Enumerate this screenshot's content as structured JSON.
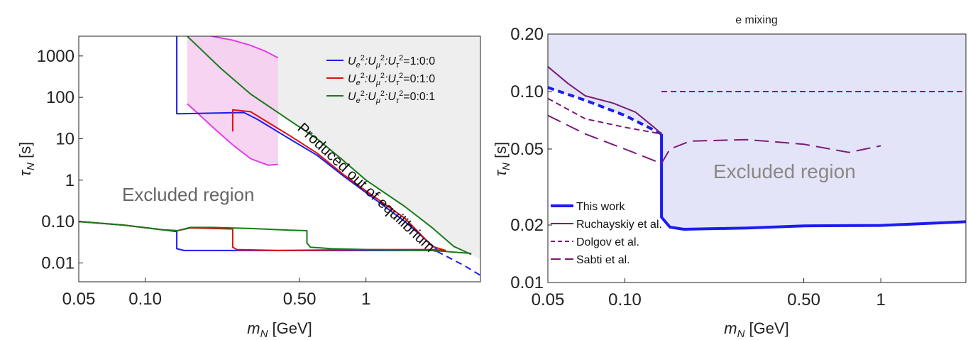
{
  "chart_data": [
    {
      "type": "line",
      "title": "",
      "xlabel": "m",
      "xlabel_sub": "N",
      "xlabel_unit": " [GeV]",
      "ylabel": "τ",
      "ylabel_sub": "N",
      "ylabel_unit": " [s]",
      "x_scale": "log",
      "y_scale": "log",
      "xlim": [
        0.05,
        3.3
      ],
      "ylim": [
        0.0035,
        3000
      ],
      "x_ticks": [
        {
          "v": 0.05,
          "label": "0.05"
        },
        {
          "v": 0.1,
          "label": "0.10"
        },
        {
          "v": 0.5,
          "label": "0.50"
        },
        {
          "v": 1,
          "label": "1"
        }
      ],
      "y_ticks": [
        {
          "v": 0.01,
          "label": "0.01"
        },
        {
          "v": 0.1,
          "label": "0.10"
        },
        {
          "v": 1,
          "label": "1"
        },
        {
          "v": 10,
          "label": "10"
        },
        {
          "v": 100,
          "label": "100"
        },
        {
          "v": 1000,
          "label": "1000"
        }
      ],
      "grid": false,
      "legend_position": "top-right",
      "annotations": {
        "excluded": "Excluded region",
        "out_of_eq": "Produced out of equilibrium"
      },
      "legend": [
        {
          "series": "Ue",
          "color": "#1c1cf0",
          "label_parts": [
            "U",
            "e",
            "2",
            ":U",
            "μ",
            "2",
            ":U",
            "τ",
            "2",
            "=1:0:0"
          ]
        },
        {
          "series": "Umu",
          "color": "#e01010",
          "label_parts": [
            "U",
            "e",
            "2",
            ":U",
            "μ",
            "2",
            ":U",
            "τ",
            "2",
            "=0:1:0"
          ]
        },
        {
          "series": "Utau",
          "color": "#1a7a1a",
          "label_parts": [
            "U",
            "e",
            "2",
            ":U",
            "μ",
            "2",
            ":U",
            "τ",
            "2",
            "=0:0:1"
          ]
        }
      ],
      "regions": {
        "excluded_fill": "#eeeeee",
        "magenta_band_fill": "#f5cdf0",
        "magenta_band_dark_fill": "#e7cbe4",
        "magenta_line": "#e63be6"
      },
      "series": [
        {
          "id": "Ue",
          "color": "#1c1cf0",
          "style": "solid",
          "points": [
            [
              0.139,
              3000
            ],
            [
              0.139,
              40
            ],
            [
              0.14,
              40
            ],
            [
              0.28,
              43
            ],
            [
              0.32,
              30
            ],
            [
              0.45,
              10
            ],
            [
              0.6,
              4
            ],
            [
              0.8,
              1.2
            ],
            [
              1.0,
              0.5
            ],
            [
              1.5,
              0.1
            ],
            [
              2.1,
              0.021
            ]
          ]
        },
        {
          "id": "Ue-lower",
          "color": "#1c1cf0",
          "style": "solid",
          "points": [
            [
              0.05,
              0.1
            ],
            [
              0.08,
              0.082
            ],
            [
              0.12,
              0.063
            ],
            [
              0.139,
              0.057
            ],
            [
              0.139,
              0.022
            ],
            [
              0.15,
              0.02
            ],
            [
              0.3,
              0.02
            ],
            [
              0.6,
              0.02
            ],
            [
              1.0,
              0.02
            ],
            [
              2.0,
              0.02
            ],
            [
              2.1,
              0.019
            ]
          ]
        },
        {
          "id": "Ue-ext",
          "color": "#1c1cf0",
          "style": "dashed",
          "points": [
            [
              2.1,
              0.019
            ],
            [
              2.8,
              0.0085
            ],
            [
              3.3,
              0.005
            ]
          ]
        },
        {
          "id": "Umu",
          "color": "#e01010",
          "style": "solid",
          "points": [
            [
              0.249,
              15
            ],
            [
              0.249,
              50
            ],
            [
              0.3,
              45
            ],
            [
              0.45,
              12
            ],
            [
              0.6,
              4.5
            ],
            [
              0.8,
              1.3
            ],
            [
              1.0,
              0.55
            ],
            [
              1.5,
              0.12
            ],
            [
              2.0,
              0.025
            ],
            [
              2.3,
              0.02
            ]
          ]
        },
        {
          "id": "Umu-lower",
          "color": "#e01010",
          "style": "solid",
          "points": [
            [
              0.05,
              0.1
            ],
            [
              0.08,
              0.082
            ],
            [
              0.12,
              0.063
            ],
            [
              0.14,
              0.06
            ],
            [
              0.16,
              0.07
            ],
            [
              0.2,
              0.068
            ],
            [
              0.249,
              0.066
            ],
            [
              0.249,
              0.024
            ],
            [
              0.26,
              0.021
            ],
            [
              0.4,
              0.02
            ],
            [
              1.0,
              0.021
            ],
            [
              2.0,
              0.021
            ],
            [
              2.3,
              0.02
            ]
          ]
        },
        {
          "id": "Utau",
          "color": "#1a7a1a",
          "style": "solid",
          "points": [
            [
              0.155,
              3000
            ],
            [
              0.18,
              1400
            ],
            [
              0.22,
              500
            ],
            [
              0.3,
              120
            ],
            [
              0.45,
              28
            ],
            [
              0.6,
              10
            ],
            [
              0.8,
              2.8
            ],
            [
              1.0,
              1.0
            ],
            [
              1.5,
              0.23
            ],
            [
              2.0,
              0.07
            ],
            [
              2.5,
              0.025
            ],
            [
              3.0,
              0.016
            ]
          ]
        },
        {
          "id": "Utau-lower",
          "color": "#1a7a1a",
          "style": "solid",
          "points": [
            [
              0.05,
              0.1
            ],
            [
              0.08,
              0.082
            ],
            [
              0.12,
              0.063
            ],
            [
              0.14,
              0.06
            ],
            [
              0.16,
              0.072
            ],
            [
              0.2,
              0.072
            ],
            [
              0.3,
              0.068
            ],
            [
              0.45,
              0.062
            ],
            [
              0.54,
              0.06
            ],
            [
              0.54,
              0.03
            ],
            [
              0.56,
              0.024
            ],
            [
              0.7,
              0.022
            ],
            [
              1.0,
              0.021
            ],
            [
              2.0,
              0.02
            ],
            [
              3.0,
              0.017
            ]
          ]
        }
      ]
    },
    {
      "type": "line",
      "title": "e mixing",
      "xlabel": "m",
      "xlabel_sub": "N",
      "xlabel_unit": " [GeV]",
      "ylabel": "τ",
      "ylabel_sub": "N",
      "ylabel_unit": " [s]",
      "x_scale": "log",
      "y_scale": "log",
      "xlim": [
        0.05,
        2.15
      ],
      "ylim": [
        0.01,
        0.2
      ],
      "x_ticks": [
        {
          "v": 0.05,
          "label": "0.05"
        },
        {
          "v": 0.1,
          "label": "0.10"
        },
        {
          "v": 0.5,
          "label": "0.50"
        },
        {
          "v": 1,
          "label": "1"
        }
      ],
      "y_ticks": [
        {
          "v": 0.01,
          "label": "0.01"
        },
        {
          "v": 0.02,
          "label": "0.02"
        },
        {
          "v": 0.05,
          "label": "0.05"
        },
        {
          "v": 0.1,
          "label": "0.10"
        },
        {
          "v": 0.2,
          "label": "0.20"
        }
      ],
      "grid": false,
      "legend_position": "bottom-left",
      "annotations": {
        "excluded": "Excluded region"
      },
      "regions": {
        "excluded_fill": "#e4e4f8"
      },
      "legend": [
        {
          "series": "this",
          "label": "This work",
          "color": "#1c1cf0",
          "style": "solid"
        },
        {
          "series": "ruch",
          "label": "Ruchayskiy et al.",
          "color": "#7a1a7a",
          "style": "solid"
        },
        {
          "series": "dolg",
          "label": "Dolgov et al.",
          "color": "#7a1a7a",
          "style": "short-dash"
        },
        {
          "series": "sabti",
          "label": "Sabti et al.",
          "color": "#7a1a7a",
          "style": "long-dash"
        }
      ],
      "series": [
        {
          "id": "this",
          "name": "This work",
          "color": "#1c1cf0",
          "style": "solid",
          "width": 4,
          "points": [
            [
              0.139,
              0.06
            ],
            [
              0.139,
              0.022
            ],
            [
              0.15,
              0.0195
            ],
            [
              0.17,
              0.019
            ],
            [
              0.3,
              0.0193
            ],
            [
              0.5,
              0.0198
            ],
            [
              1.0,
              0.0199
            ],
            [
              2.15,
              0.0208
            ]
          ]
        },
        {
          "id": "this-dashed",
          "color": "#1c1cf0",
          "style": "dashed",
          "width": 4,
          "points": [
            [
              0.05,
              0.105
            ],
            [
              0.07,
              0.09
            ],
            [
              0.1,
              0.075
            ],
            [
              0.139,
              0.06
            ]
          ]
        },
        {
          "id": "ruch",
          "name": "Ruchayskiy et al.",
          "color": "#7a1a7a",
          "style": "solid",
          "width": 2,
          "points": [
            [
              0.05,
              0.135
            ],
            [
              0.06,
              0.11
            ],
            [
              0.07,
              0.095
            ],
            [
              0.09,
              0.087
            ],
            [
              0.11,
              0.078
            ],
            [
              0.13,
              0.065
            ],
            [
              0.139,
              0.06
            ]
          ]
        },
        {
          "id": "dolg",
          "name": "Dolgov et al.",
          "color": "#7a1a7a",
          "style": "short-dash",
          "width": 2,
          "points": [
            [
              0.05,
              0.092
            ],
            [
              0.07,
              0.072
            ],
            [
              0.1,
              0.065
            ],
            [
              0.139,
              0.06
            ]
          ]
        },
        {
          "id": "dolg-flat",
          "color": "#7a1a7a",
          "style": "short-dash",
          "width": 2,
          "points": [
            [
              0.139,
              0.1
            ],
            [
              2.15,
              0.1
            ]
          ]
        },
        {
          "id": "sabti",
          "name": "Sabti et al.",
          "color": "#7a1a7a",
          "style": "long-dash",
          "width": 2,
          "points": [
            [
              0.05,
              0.075
            ],
            [
              0.07,
              0.06
            ],
            [
              0.1,
              0.05
            ],
            [
              0.139,
              0.042
            ],
            [
              0.15,
              0.05
            ],
            [
              0.18,
              0.055
            ],
            [
              0.3,
              0.056
            ],
            [
              0.5,
              0.053
            ],
            [
              0.75,
              0.048
            ],
            [
              1.0,
              0.052
            ]
          ]
        }
      ]
    }
  ]
}
